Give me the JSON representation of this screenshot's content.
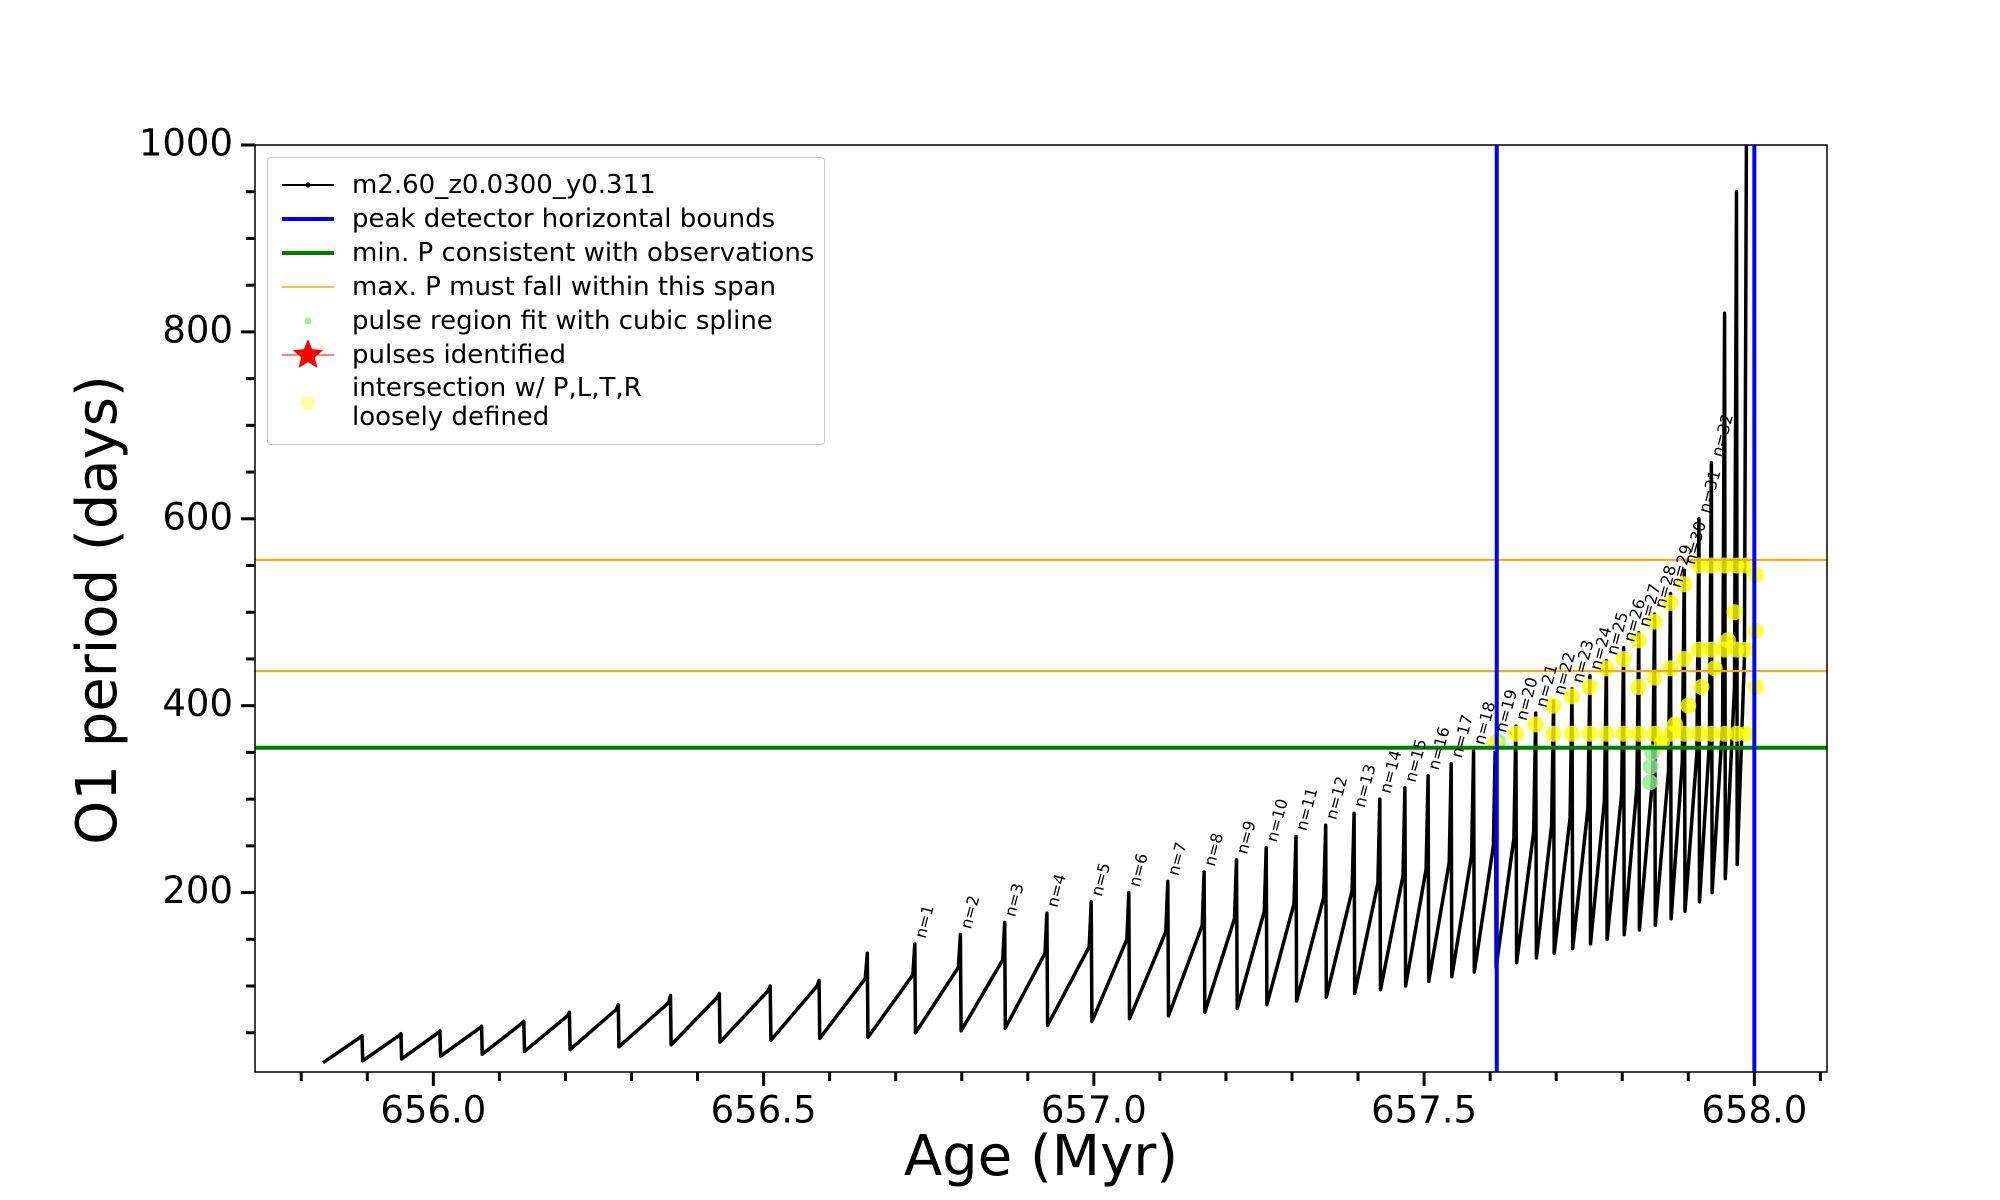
{
  "chart_data": {
    "type": "line",
    "xlabel": "Age (Myr)",
    "ylabel": "O1 period (days)",
    "xlim": [
      655.73,
      658.11
    ],
    "ylim": [
      8,
      1000
    ],
    "xticks": [
      {
        "value": 656.0,
        "label": "656.0"
      },
      {
        "value": 656.5,
        "label": "656.5"
      },
      {
        "value": 657.0,
        "label": "657.0"
      },
      {
        "value": 657.5,
        "label": "657.5"
      },
      {
        "value": 658.0,
        "label": "658.0"
      }
    ],
    "xminorticks": [
      655.8,
      655.9,
      656.1,
      656.2,
      656.3,
      656.4,
      656.6,
      656.7,
      656.8,
      656.9,
      657.1,
      657.2,
      657.3,
      657.4,
      657.6,
      657.7,
      657.8,
      657.9,
      658.1
    ],
    "yticks": [
      200,
      400,
      600,
      800,
      1000
    ],
    "yminorticks": [
      50,
      100,
      150,
      250,
      300,
      350,
      450,
      500,
      550,
      650,
      700,
      750,
      850,
      900,
      950
    ],
    "legend": "upper left",
    "series": [
      {
        "name": "m2.60_z0.0300_y0.311",
        "color": "#000000",
        "style": "line",
        "x": [
          655.833,
          655.889,
          655.892,
          655.893,
          655.948,
          655.951,
          655.952,
          656.007,
          656.01,
          656.011,
          656.07,
          656.073,
          656.074,
          656.134,
          656.137,
          656.138,
          656.203,
          656.206,
          656.207,
          656.277,
          656.28,
          656.281,
          656.356,
          656.359,
          656.36,
          656.43,
          656.433,
          656.434,
          656.507,
          656.51,
          656.511,
          656.581,
          656.584,
          656.585,
          656.654,
          656.657,
          656.658,
          656.726,
          656.729,
          656.73,
          656.795,
          656.798,
          656.799,
          656.862,
          656.865,
          656.866,
          656.926,
          656.929,
          656.93,
          656.993,
          656.996,
          656.997,
          657.05,
          657.053,
          657.054,
          657.109,
          657.112,
          657.113,
          657.164,
          657.167,
          657.168,
          657.213,
          657.216,
          657.217,
          657.258,
          657.261,
          657.262,
          657.303,
          657.306,
          657.307,
          657.348,
          657.351,
          657.352,
          657.391,
          657.394,
          657.395,
          657.43,
          657.433,
          657.434,
          657.468,
          657.471,
          657.472,
          657.503,
          657.506,
          657.507,
          657.538,
          657.541,
          657.542,
          657.572,
          657.575,
          657.576,
          657.605,
          657.608,
          657.609,
          657.636,
          657.639,
          657.64,
          657.666,
          657.669,
          657.67,
          657.693,
          657.696,
          657.697,
          657.721,
          657.724,
          657.725,
          657.748,
          657.751,
          657.752,
          657.773,
          657.776,
          657.777,
          657.799,
          657.802,
          657.803,
          657.822,
          657.825,
          657.826,
          657.846,
          657.849,
          657.85,
          657.87,
          657.873,
          657.874,
          657.891,
          657.894,
          657.895,
          657.913,
          657.916,
          657.917,
          657.932,
          657.935,
          657.936,
          657.952,
          657.955,
          657.956,
          657.97,
          657.973,
          657.974,
          657.985,
          657.988
        ],
        "values": [
          18,
          45,
          47,
          20,
          47,
          49,
          22,
          50,
          52,
          25,
          55,
          57,
          27,
          60,
          62,
          30,
          68,
          72,
          32,
          75,
          80,
          35,
          82,
          90,
          37,
          88,
          92,
          40,
          95,
          100,
          42,
          100,
          106,
          44,
          108,
          135,
          45,
          112,
          145,
          50,
          120,
          155,
          52,
          128,
          168,
          55,
          135,
          178,
          58,
          142,
          190,
          62,
          150,
          200,
          65,
          158,
          212,
          68,
          165,
          222,
          72,
          172,
          235,
          76,
          180,
          248,
          80,
          188,
          260,
          84,
          195,
          272,
          88,
          202,
          285,
          92,
          210,
          300,
          96,
          218,
          312,
          100,
          225,
          325,
          105,
          232,
          338,
          110,
          240,
          352,
          115,
          250,
          365,
          120,
          258,
          378,
          125,
          265,
          392,
          130,
          272,
          405,
          135,
          280,
          418,
          140,
          290,
          432,
          145,
          298,
          448,
          150,
          305,
          462,
          155,
          312,
          478,
          160,
          322,
          498,
          165,
          330,
          520,
          172,
          340,
          545,
          180,
          350,
          600,
          190,
          360,
          660,
          200,
          380,
          820,
          215,
          420,
          950,
          230,
          450,
          1000
        ]
      },
      {
        "name": "peak detector horizontal bounds",
        "color": "#0000ff",
        "style": "vline",
        "values": [
          657.61,
          658.0
        ]
      },
      {
        "name": "min. P consistent with observations",
        "color": "#008000",
        "style": "hline",
        "values": [
          355
        ]
      },
      {
        "name": "max. P must fall within this span",
        "color": "#ffa500",
        "style": "hline",
        "values": [
          437,
          556
        ]
      },
      {
        "name": "pulse region fit with cubic spline",
        "color": "#90ee90",
        "style": "scatter",
        "x": [
          657.612,
          657.842,
          657.843,
          657.845
        ],
        "values": [
          362,
          318,
          335,
          350
        ]
      },
      {
        "name": "pulses identified",
        "color": "#ff0000",
        "style": "star",
        "x": [],
        "values": []
      },
      {
        "name": "intersection w/ P,L,T,R\nloosely defined",
        "color": "#ffff00",
        "style": "scatter",
        "x": [
          657.608,
          657.639,
          657.669,
          657.696,
          657.696,
          657.724,
          657.724,
          657.751,
          657.751,
          657.776,
          657.776,
          657.802,
          657.802,
          657.825,
          657.825,
          657.825,
          657.849,
          657.849,
          657.849,
          657.873,
          657.873,
          657.873,
          657.894,
          657.894,
          657.894,
          657.916,
          657.916,
          657.916,
          657.935,
          657.935,
          657.935,
          657.955,
          657.955,
          657.955,
          657.973,
          657.973,
          657.973,
          657.988,
          657.988,
          657.988,
          658.002,
          658.002,
          658.002,
          657.86,
          657.88,
          657.9,
          657.92,
          657.94,
          657.96,
          657.97
        ],
        "values": [
          360,
          370,
          380,
          370,
          400,
          370,
          410,
          370,
          420,
          370,
          440,
          370,
          450,
          370,
          420,
          470,
          370,
          430,
          490,
          370,
          440,
          510,
          370,
          450,
          530,
          370,
          460,
          550,
          370,
          460,
          550,
          370,
          460,
          550,
          370,
          460,
          550,
          370,
          460,
          550,
          420,
          480,
          540,
          360,
          380,
          400,
          420,
          440,
          470,
          500
        ]
      }
    ],
    "annotations": [
      "n=1",
      "n=2",
      "n=3",
      "n=4",
      "n=5",
      "n=6",
      "n=7",
      "n=8",
      "n=9",
      "n=10",
      "n=11",
      "n=12",
      "n=13",
      "n=14",
      "n=15",
      "n=16",
      "n=17",
      "n=18",
      "n=19",
      "n=20",
      "n=21",
      "n=22",
      "n=23",
      "n=24",
      "n=25",
      "n=26",
      "n=27",
      "n=28",
      "n=29",
      "n=30",
      "n=31",
      "n=32"
    ]
  }
}
